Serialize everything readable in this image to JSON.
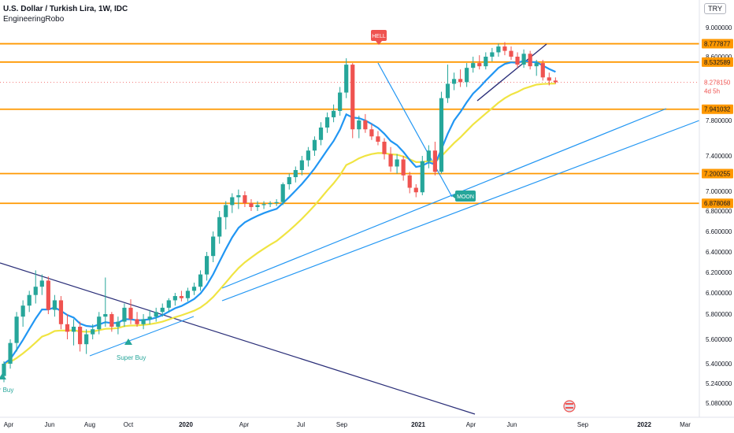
{
  "legend": {
    "title": "U.S. Dollar / Turkish Lira, 1W, IDC",
    "indicator": "EngineeringRobo"
  },
  "currency_badge": "TRY",
  "colors": {
    "up": "#26a69a",
    "down": "#ef5350",
    "ema_fast": "#2196f3",
    "ema_slow": "#f0e442",
    "level": "#ff9800",
    "trend": "#2196f3",
    "resistance": "#2a2e78",
    "signal_buy": "#26a69a",
    "signal_sell": "#ef5350"
  },
  "chart_data": {
    "type": "candlestick",
    "title": "U.S. Dollar / Turkish Lira, 1W, IDC",
    "xlabel": "",
    "ylabel": "",
    "x_ticks": [
      "Apr",
      "Jun",
      "Aug",
      "Oct",
      "2020",
      "Apr",
      "Jul",
      "Sep",
      "2021",
      "Apr",
      "Jun",
      "Sep",
      "2022",
      "Mar"
    ],
    "y_ticks": [
      "9.000000",
      "8.600000",
      "7.800000",
      "7.400000",
      "7.000000",
      "6.800000",
      "6.600000",
      "6.400000",
      "6.200000",
      "6.000000",
      "5.800000",
      "5.600000",
      "5.400000",
      "5.240000",
      "5.080000"
    ],
    "ylim": [
      5.0,
      9.15
    ],
    "grid": false,
    "last_price": {
      "value": "8.278150",
      "countdown": "4d 5h"
    },
    "horizontal_levels": [
      "8.777877",
      "8.532589",
      "7.941032",
      "7.200255",
      "6.878068"
    ],
    "signals": [
      {
        "label": "HELL",
        "type": "sell"
      },
      {
        "label": "MOON",
        "type": "buy"
      },
      {
        "label": "Super Buy",
        "type": "buy"
      },
      {
        "label": "Super Buy",
        "type": "buy"
      }
    ],
    "candles": [
      {
        "o": 5.3,
        "h": 5.42,
        "l": 5.25,
        "c": 5.4
      },
      {
        "o": 5.4,
        "h": 5.6,
        "l": 5.36,
        "c": 5.57
      },
      {
        "o": 5.57,
        "h": 5.82,
        "l": 5.5,
        "c": 5.78
      },
      {
        "o": 5.78,
        "h": 5.93,
        "l": 5.7,
        "c": 5.88
      },
      {
        "o": 5.88,
        "h": 6.02,
        "l": 5.82,
        "c": 5.98
      },
      {
        "o": 5.98,
        "h": 6.22,
        "l": 5.9,
        "c": 6.06
      },
      {
        "o": 6.06,
        "h": 6.18,
        "l": 5.98,
        "c": 6.12
      },
      {
        "o": 6.12,
        "h": 6.16,
        "l": 5.8,
        "c": 5.84
      },
      {
        "o": 5.84,
        "h": 5.98,
        "l": 5.78,
        "c": 5.93
      },
      {
        "o": 5.93,
        "h": 5.97,
        "l": 5.68,
        "c": 5.72
      },
      {
        "o": 5.72,
        "h": 5.8,
        "l": 5.6,
        "c": 5.66
      },
      {
        "o": 5.66,
        "h": 5.76,
        "l": 5.55,
        "c": 5.7
      },
      {
        "o": 5.7,
        "h": 5.74,
        "l": 5.5,
        "c": 5.56
      },
      {
        "o": 5.56,
        "h": 5.68,
        "l": 5.48,
        "c": 5.64
      },
      {
        "o": 5.64,
        "h": 5.72,
        "l": 5.6,
        "c": 5.68
      },
      {
        "o": 5.68,
        "h": 5.82,
        "l": 5.64,
        "c": 5.78
      },
      {
        "o": 5.78,
        "h": 6.15,
        "l": 5.7,
        "c": 5.8
      },
      {
        "o": 5.8,
        "h": 5.82,
        "l": 5.66,
        "c": 5.7
      },
      {
        "o": 5.7,
        "h": 5.78,
        "l": 5.64,
        "c": 5.74
      },
      {
        "o": 5.74,
        "h": 5.9,
        "l": 5.7,
        "c": 5.86
      },
      {
        "o": 5.86,
        "h": 5.94,
        "l": 5.72,
        "c": 5.76
      },
      {
        "o": 5.76,
        "h": 5.82,
        "l": 5.7,
        "c": 5.72
      },
      {
        "o": 5.72,
        "h": 5.8,
        "l": 5.68,
        "c": 5.76
      },
      {
        "o": 5.76,
        "h": 5.84,
        "l": 5.72,
        "c": 5.78
      },
      {
        "o": 5.78,
        "h": 5.86,
        "l": 5.74,
        "c": 5.82
      },
      {
        "o": 5.82,
        "h": 5.9,
        "l": 5.78,
        "c": 5.86
      },
      {
        "o": 5.86,
        "h": 5.95,
        "l": 5.82,
        "c": 5.93
      },
      {
        "o": 5.93,
        "h": 6.0,
        "l": 5.88,
        "c": 5.97
      },
      {
        "o": 5.97,
        "h": 6.02,
        "l": 5.92,
        "c": 5.95
      },
      {
        "o": 5.95,
        "h": 6.05,
        "l": 5.92,
        "c": 6.02
      },
      {
        "o": 6.02,
        "h": 6.1,
        "l": 5.98,
        "c": 6.06
      },
      {
        "o": 6.06,
        "h": 6.22,
        "l": 6.02,
        "c": 6.18
      },
      {
        "o": 6.18,
        "h": 6.4,
        "l": 6.12,
        "c": 6.36
      },
      {
        "o": 6.36,
        "h": 6.6,
        "l": 6.3,
        "c": 6.55
      },
      {
        "o": 6.55,
        "h": 6.8,
        "l": 6.48,
        "c": 6.74
      },
      {
        "o": 6.74,
        "h": 6.9,
        "l": 6.62,
        "c": 6.86
      },
      {
        "o": 6.86,
        "h": 6.98,
        "l": 6.78,
        "c": 6.94
      },
      {
        "o": 6.94,
        "h": 7.02,
        "l": 6.82,
        "c": 6.96
      },
      {
        "o": 6.96,
        "h": 7.0,
        "l": 6.84,
        "c": 6.88
      },
      {
        "o": 6.88,
        "h": 6.92,
        "l": 6.8,
        "c": 6.84
      },
      {
        "o": 6.84,
        "h": 6.9,
        "l": 6.8,
        "c": 6.86
      },
      {
        "o": 6.86,
        "h": 6.9,
        "l": 6.82,
        "c": 6.87
      },
      {
        "o": 6.87,
        "h": 6.9,
        "l": 6.84,
        "c": 6.88
      },
      {
        "o": 6.88,
        "h": 6.92,
        "l": 6.85,
        "c": 6.89
      },
      {
        "o": 6.89,
        "h": 7.1,
        "l": 6.86,
        "c": 7.08
      },
      {
        "o": 7.08,
        "h": 7.2,
        "l": 7.02,
        "c": 7.16
      },
      {
        "o": 7.16,
        "h": 7.28,
        "l": 7.1,
        "c": 7.24
      },
      {
        "o": 7.24,
        "h": 7.4,
        "l": 7.18,
        "c": 7.35
      },
      {
        "o": 7.35,
        "h": 7.5,
        "l": 7.28,
        "c": 7.46
      },
      {
        "o": 7.46,
        "h": 7.62,
        "l": 7.4,
        "c": 7.58
      },
      {
        "o": 7.58,
        "h": 7.78,
        "l": 7.52,
        "c": 7.72
      },
      {
        "o": 7.72,
        "h": 7.9,
        "l": 7.66,
        "c": 7.84
      },
      {
        "o": 7.84,
        "h": 8.0,
        "l": 7.78,
        "c": 7.92
      },
      {
        "o": 7.92,
        "h": 8.22,
        "l": 7.86,
        "c": 8.15
      },
      {
        "o": 8.15,
        "h": 8.58,
        "l": 8.08,
        "c": 8.5
      },
      {
        "o": 8.5,
        "h": 8.52,
        "l": 7.6,
        "c": 7.7
      },
      {
        "o": 7.7,
        "h": 7.86,
        "l": 7.6,
        "c": 7.8
      },
      {
        "o": 7.8,
        "h": 7.88,
        "l": 7.66,
        "c": 7.7
      },
      {
        "o": 7.7,
        "h": 7.76,
        "l": 7.58,
        "c": 7.62
      },
      {
        "o": 7.62,
        "h": 7.68,
        "l": 7.52,
        "c": 7.56
      },
      {
        "o": 7.56,
        "h": 7.6,
        "l": 7.36,
        "c": 7.42
      },
      {
        "o": 7.42,
        "h": 7.5,
        "l": 7.22,
        "c": 7.28
      },
      {
        "o": 7.28,
        "h": 7.42,
        "l": 7.2,
        "c": 7.36
      },
      {
        "o": 7.36,
        "h": 7.4,
        "l": 7.12,
        "c": 7.18
      },
      {
        "o": 7.18,
        "h": 7.22,
        "l": 6.98,
        "c": 7.04
      },
      {
        "o": 7.04,
        "h": 7.08,
        "l": 6.94,
        "c": 6.99
      },
      {
        "o": 6.99,
        "h": 7.4,
        "l": 6.96,
        "c": 7.34
      },
      {
        "o": 7.34,
        "h": 7.52,
        "l": 7.26,
        "c": 7.46
      },
      {
        "o": 7.46,
        "h": 7.56,
        "l": 7.18,
        "c": 7.22
      },
      {
        "o": 7.22,
        "h": 8.16,
        "l": 7.2,
        "c": 8.08
      },
      {
        "o": 8.08,
        "h": 8.5,
        "l": 8.02,
        "c": 8.26
      },
      {
        "o": 8.26,
        "h": 8.4,
        "l": 8.18,
        "c": 8.32
      },
      {
        "o": 8.32,
        "h": 8.44,
        "l": 8.22,
        "c": 8.28
      },
      {
        "o": 8.28,
        "h": 8.52,
        "l": 8.22,
        "c": 8.46
      },
      {
        "o": 8.46,
        "h": 8.6,
        "l": 8.4,
        "c": 8.52
      },
      {
        "o": 8.52,
        "h": 8.62,
        "l": 8.44,
        "c": 8.48
      },
      {
        "o": 8.48,
        "h": 8.66,
        "l": 8.44,
        "c": 8.6
      },
      {
        "o": 8.6,
        "h": 8.72,
        "l": 8.54,
        "c": 8.66
      },
      {
        "o": 8.66,
        "h": 8.78,
        "l": 8.6,
        "c": 8.74
      },
      {
        "o": 8.74,
        "h": 8.8,
        "l": 8.62,
        "c": 8.68
      },
      {
        "o": 8.68,
        "h": 8.74,
        "l": 8.56,
        "c": 8.6
      },
      {
        "o": 8.6,
        "h": 8.66,
        "l": 8.46,
        "c": 8.5
      },
      {
        "o": 8.5,
        "h": 8.7,
        "l": 8.46,
        "c": 8.64
      },
      {
        "o": 8.64,
        "h": 8.68,
        "l": 8.44,
        "c": 8.48
      },
      {
        "o": 8.48,
        "h": 8.56,
        "l": 8.36,
        "c": 8.52
      },
      {
        "o": 8.52,
        "h": 8.56,
        "l": 8.3,
        "c": 8.34
      },
      {
        "o": 8.34,
        "h": 8.4,
        "l": 8.24,
        "c": 8.3
      },
      {
        "o": 8.3,
        "h": 8.34,
        "l": 8.26,
        "c": 8.28
      }
    ]
  }
}
